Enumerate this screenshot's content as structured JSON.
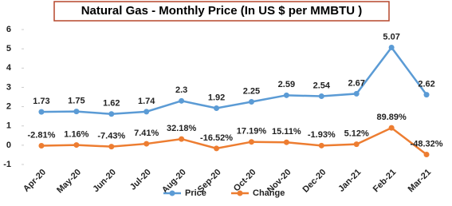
{
  "chart_data": {
    "type": "line",
    "title": "Natural Gas - Monthly Price (In US $ per MMBTU )",
    "categories": [
      "Apr-20",
      "May-20",
      "Jun-20",
      "Jul-20",
      "Aug-20",
      "Sep-20",
      "Oct-20",
      "Nov-20",
      "Dec-20",
      "Jan-21",
      "Feb-21",
      "Mar-21"
    ],
    "series": [
      {
        "name": "Price",
        "color": "#5b9bd5",
        "values": [
          1.73,
          1.75,
          1.62,
          1.74,
          2.3,
          1.92,
          2.25,
          2.59,
          2.54,
          2.67,
          5.07,
          2.62
        ]
      },
      {
        "name": "Change",
        "color": "#ed7d31",
        "values": [
          -0.0281,
          0.0116,
          -0.0743,
          0.0741,
          0.3218,
          -0.1652,
          0.1719,
          0.1511,
          -0.0193,
          0.0512,
          0.8989,
          -0.4832
        ],
        "value_labels": [
          "-2.81%",
          "1.16%",
          "-7.43%",
          "7.41%",
          "32.18%",
          "-16.52%",
          "17.19%",
          "15.11%",
          "-1.93%",
          "5.12%",
          "89.89%",
          "-48.32%"
        ]
      }
    ],
    "ylim": [
      -1,
      6
    ],
    "yticks": [
      -1,
      0,
      1,
      2,
      3,
      4,
      5,
      6
    ],
    "legend": "bottom"
  }
}
